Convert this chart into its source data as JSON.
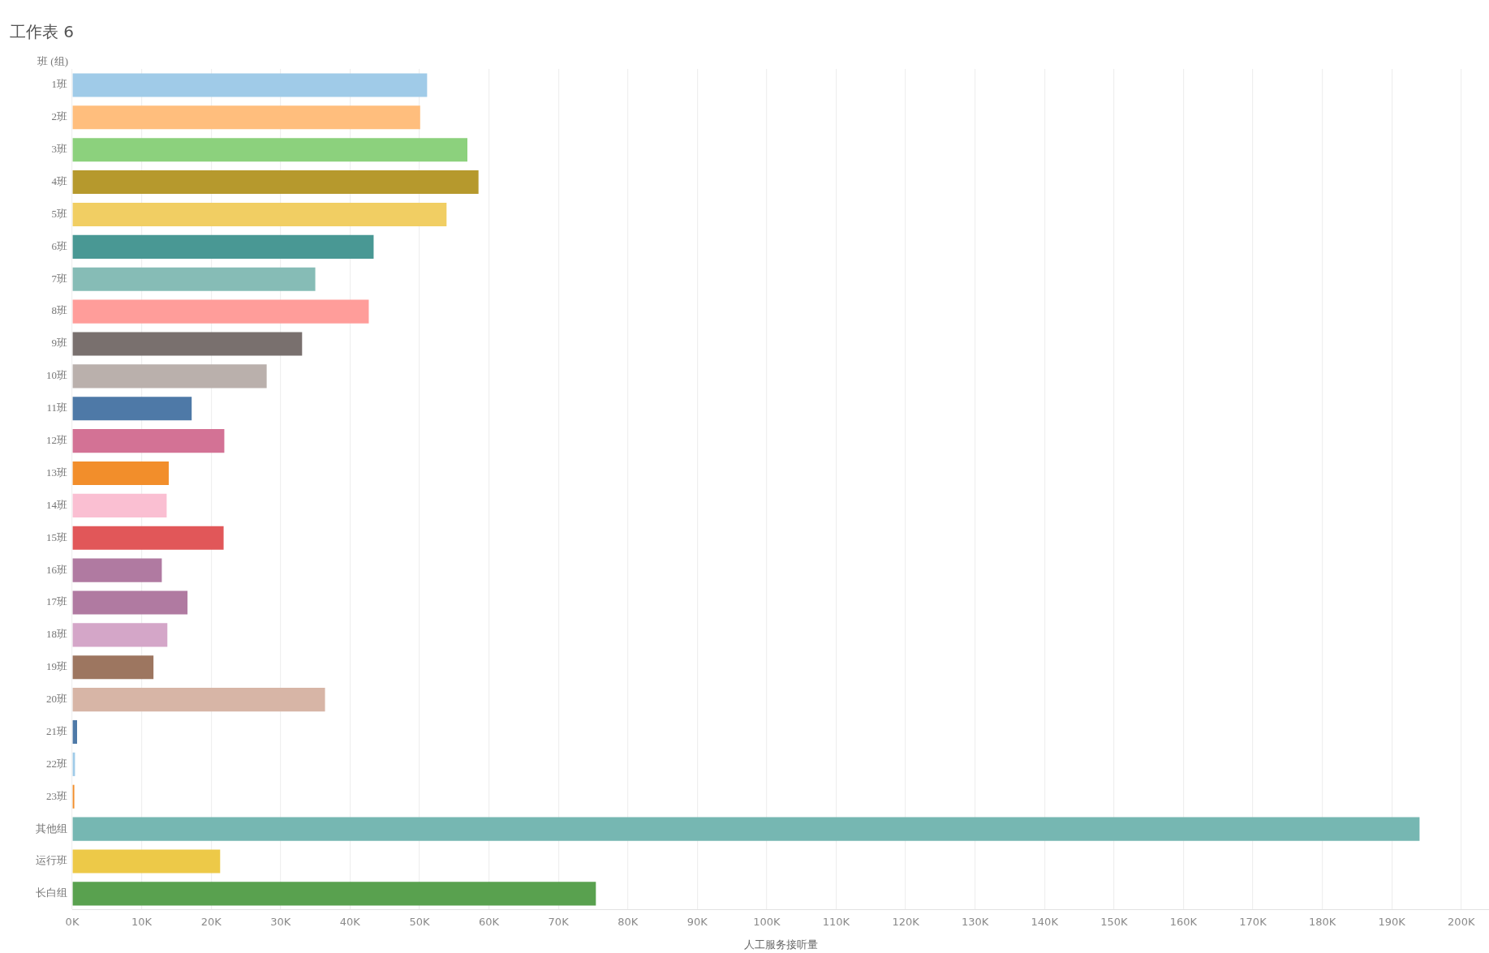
{
  "chart_data": {
    "type": "bar",
    "orientation": "horizontal",
    "title": "工作表 6",
    "ylabel": "班 (组)",
    "xlabel": "人工服务接听量",
    "categories": [
      "1班",
      "2班",
      "3班",
      "4班",
      "5班",
      "6班",
      "7班",
      "8班",
      "9班",
      "10班",
      "11班",
      "12班",
      "13班",
      "14班",
      "15班",
      "16班",
      "17班",
      "18班",
      "19班",
      "20班",
      "21班",
      "22班",
      "23班",
      "其他组",
      "运行班",
      "长白组"
    ],
    "values": [
      51100,
      50100,
      56900,
      58500,
      53900,
      43400,
      35000,
      42700,
      33100,
      28000,
      17200,
      21900,
      13900,
      13600,
      21800,
      12900,
      16600,
      13700,
      11700,
      36400,
      700,
      400,
      300,
      194000,
      21300,
      75400
    ],
    "colors": [
      "#a0cbe8",
      "#ffbe7d",
      "#8cd17d",
      "#b6992d",
      "#f1ce63",
      "#499894",
      "#86bcb6",
      "#ff9d9a",
      "#79706e",
      "#bab0ac",
      "#4e79a7",
      "#d37295",
      "#f28e2b",
      "#fabfd2",
      "#e15759",
      "#b07aa1",
      "#b07aa1",
      "#d4a6c8",
      "#9d7660",
      "#d7b5a6",
      "#4e79a7",
      "#a0cbe8",
      "#f28e2b",
      "#76b7b2",
      "#edc948",
      "#59a14f"
    ],
    "xlim": [
      0,
      204000
    ],
    "xticks": [
      {
        "value": 0,
        "label": "0K"
      },
      {
        "value": 10000,
        "label": "10K"
      },
      {
        "value": 20000,
        "label": "20K"
      },
      {
        "value": 30000,
        "label": "30K"
      },
      {
        "value": 40000,
        "label": "40K"
      },
      {
        "value": 50000,
        "label": "50K"
      },
      {
        "value": 60000,
        "label": "60K"
      },
      {
        "value": 70000,
        "label": "70K"
      },
      {
        "value": 80000,
        "label": "80K"
      },
      {
        "value": 90000,
        "label": "90K"
      },
      {
        "value": 100000,
        "label": "100K"
      },
      {
        "value": 110000,
        "label": "110K"
      },
      {
        "value": 120000,
        "label": "120K"
      },
      {
        "value": 130000,
        "label": "130K"
      },
      {
        "value": 140000,
        "label": "140K"
      },
      {
        "value": 150000,
        "label": "150K"
      },
      {
        "value": 160000,
        "label": "160K"
      },
      {
        "value": 170000,
        "label": "170K"
      },
      {
        "value": 180000,
        "label": "180K"
      },
      {
        "value": 190000,
        "label": "190K"
      },
      {
        "value": 200000,
        "label": "200K"
      }
    ],
    "grid": "x"
  }
}
